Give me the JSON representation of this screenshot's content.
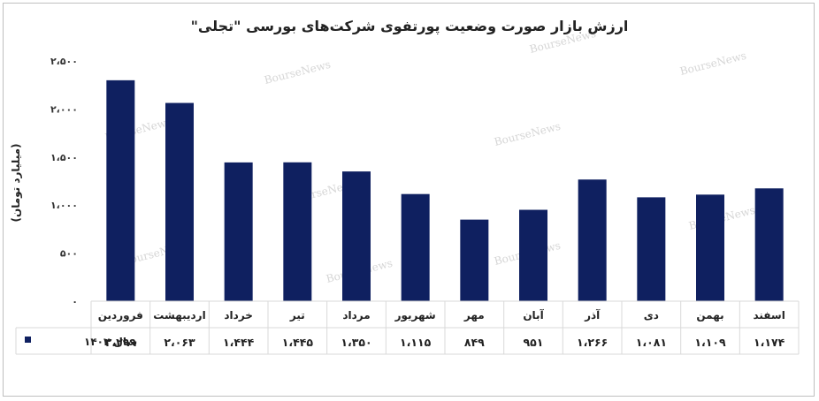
{
  "chart_data": {
    "type": "bar",
    "title": "ارزش بازار صورت وضعیت پورتفوی شرکت‌های بورسی \"تجلی\"",
    "ylabel": "(میلیارد تومان)",
    "xlabel": "",
    "ylim": [
      0,
      2500
    ],
    "yticks": [
      0,
      500,
      1000,
      1500,
      2000,
      2500
    ],
    "ytick_labels": [
      "۰",
      "۵۰۰",
      "۱،۰۰۰",
      "۱،۵۰۰",
      "۲،۰۰۰",
      "۲،۵۰۰"
    ],
    "categories": [
      "فروردین",
      "اردیبهشت",
      "خرداد",
      "تیر",
      "مرداد",
      "شهریور",
      "مهر",
      "آبان",
      "آذر",
      "دی",
      "بهمن",
      "اسفند"
    ],
    "series": [
      {
        "name": "سال ۱۴۰۲",
        "color": "#0f2060",
        "values": [
          2299,
          2063,
          1444,
          1445,
          1350,
          1115,
          849,
          951,
          1266,
          1081,
          1109,
          1174
        ],
        "value_labels": [
          "۲،۲۹۹",
          "۲،۰۶۳",
          "۱،۴۴۴",
          "۱،۴۴۵",
          "۱،۳۵۰",
          "۱،۱۱۵",
          "۸۴۹",
          "۹۵۱",
          "۱،۲۶۶",
          "۱،۰۸۱",
          "۱،۱۰۹",
          "۱،۱۷۴"
        ]
      }
    ],
    "grid": false,
    "legend": "data-table-left",
    "watermark": "BourseNews",
    "colors": {
      "grid": "#d9d9d9",
      "border": "#bfbfbf",
      "watermark": "#d6d6d6"
    }
  }
}
